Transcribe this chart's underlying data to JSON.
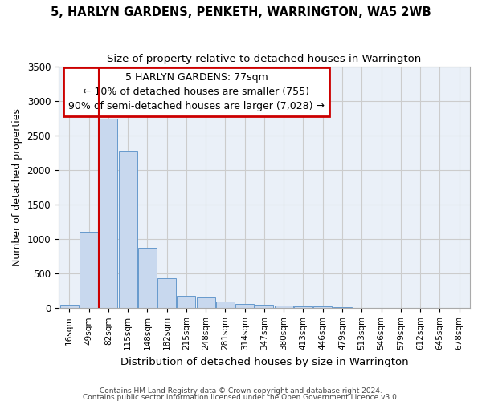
{
  "title": "5, HARLYN GARDENS, PENKETH, WARRINGTON, WA5 2WB",
  "subtitle": "Size of property relative to detached houses in Warrington",
  "xlabel": "Distribution of detached houses by size in Warrington",
  "ylabel": "Number of detached properties",
  "bar_color": "#c8d8ee",
  "bar_edge_color": "#6699cc",
  "annotation_box_edge": "#cc0000",
  "vline_color": "#cc0000",
  "bg_color": "#eaf0f8",
  "grid_color": "#cccccc",
  "categories": [
    "16sqm",
    "49sqm",
    "82sqm",
    "115sqm",
    "148sqm",
    "182sqm",
    "215sqm",
    "248sqm",
    "281sqm",
    "314sqm",
    "347sqm",
    "380sqm",
    "413sqm",
    "446sqm",
    "479sqm",
    "513sqm",
    "546sqm",
    "579sqm",
    "612sqm",
    "645sqm",
    "678sqm"
  ],
  "values": [
    55,
    1110,
    2740,
    2280,
    875,
    430,
    175,
    165,
    95,
    65,
    55,
    38,
    30,
    22,
    15,
    8,
    5,
    4,
    3,
    2,
    1
  ],
  "vline_x": 1.5,
  "annotation_line1": "5 HARLYN GARDENS: 77sqm",
  "annotation_line2": "← 10% of detached houses are smaller (755)",
  "annotation_line3": "90% of semi-detached houses are larger (7,028) →",
  "footer1": "Contains HM Land Registry data © Crown copyright and database right 2024.",
  "footer2": "Contains public sector information licensed under the Open Government Licence v3.0.",
  "ylim": [
    0,
    3500
  ],
  "yticks": [
    0,
    500,
    1000,
    1500,
    2000,
    2500,
    3000,
    3500
  ]
}
